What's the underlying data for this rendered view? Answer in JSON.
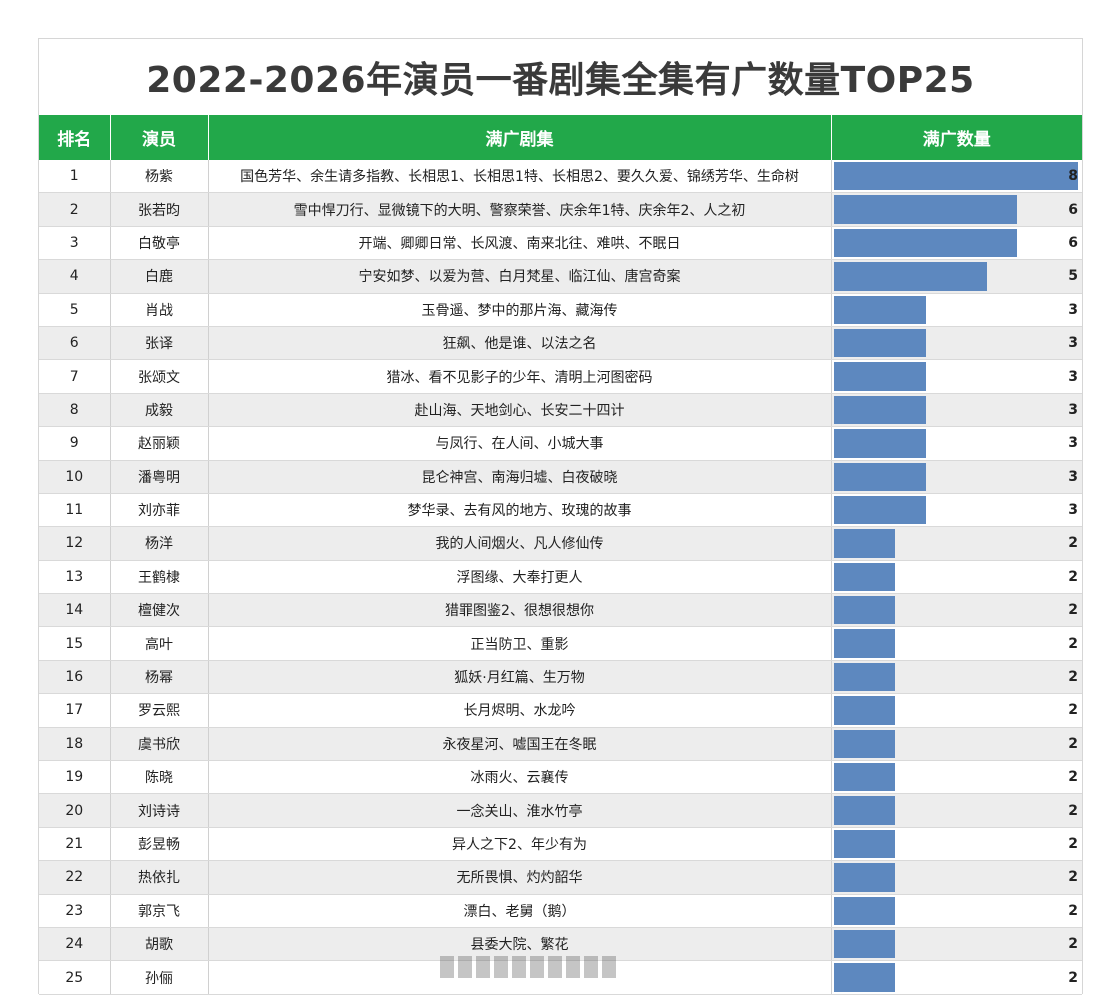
{
  "title": "2022-2026年演员一番剧集全集有广数量TOP25",
  "headers": {
    "rank": "排名",
    "actor": "演员",
    "dramas": "满广剧集",
    "count": "满广数量"
  },
  "colors": {
    "header_bg": "#22a84a",
    "bar": "#5d88bf"
  },
  "rows": [
    {
      "rank": "1",
      "actor": "杨紫",
      "dramas": "国色芳华、余生请多指教、长相思1、长相思1特、长相思2、要久久爱、锦绣芳华、生命树",
      "count": 8
    },
    {
      "rank": "2",
      "actor": "张若昀",
      "dramas": "雪中悍刀行、显微镜下的大明、警察荣誉、庆余年1特、庆余年2、人之初",
      "count": 6
    },
    {
      "rank": "3",
      "actor": "白敬亭",
      "dramas": "开端、卿卿日常、长风渡、南来北往、难哄、不眠日",
      "count": 6
    },
    {
      "rank": "4",
      "actor": "白鹿",
      "dramas": "宁安如梦、以爱为营、白月梵星、临江仙、唐宫奇案",
      "count": 5
    },
    {
      "rank": "5",
      "actor": "肖战",
      "dramas": "玉骨遥、梦中的那片海、藏海传",
      "count": 3
    },
    {
      "rank": "6",
      "actor": "张译",
      "dramas": "狂飙、他是谁、以法之名",
      "count": 3
    },
    {
      "rank": "7",
      "actor": "张颂文",
      "dramas": "猎冰、看不见影子的少年、清明上河图密码",
      "count": 3
    },
    {
      "rank": "8",
      "actor": "成毅",
      "dramas": "赴山海、天地剑心、长安二十四计",
      "count": 3
    },
    {
      "rank": "9",
      "actor": "赵丽颖",
      "dramas": "与凤行、在人间、小城大事",
      "count": 3
    },
    {
      "rank": "10",
      "actor": "潘粤明",
      "dramas": "昆仑神宫、南海归墟、白夜破晓",
      "count": 3
    },
    {
      "rank": "11",
      "actor": "刘亦菲",
      "dramas": "梦华录、去有风的地方、玫瑰的故事",
      "count": 3
    },
    {
      "rank": "12",
      "actor": "杨洋",
      "dramas": "我的人间烟火、凡人修仙传",
      "count": 2
    },
    {
      "rank": "13",
      "actor": "王鹤棣",
      "dramas": "浮图缘、大奉打更人",
      "count": 2
    },
    {
      "rank": "14",
      "actor": "檀健次",
      "dramas": "猎罪图鉴2、很想很想你",
      "count": 2
    },
    {
      "rank": "15",
      "actor": "高叶",
      "dramas": "正当防卫、重影",
      "count": 2
    },
    {
      "rank": "16",
      "actor": "杨幂",
      "dramas": "狐妖·月红篇、生万物",
      "count": 2
    },
    {
      "rank": "17",
      "actor": "罗云熙",
      "dramas": "长月烬明、水龙吟",
      "count": 2
    },
    {
      "rank": "18",
      "actor": "虞书欣",
      "dramas": "永夜星河、嘘国王在冬眠",
      "count": 2
    },
    {
      "rank": "19",
      "actor": "陈晓",
      "dramas": "冰雨火、云襄传",
      "count": 2
    },
    {
      "rank": "20",
      "actor": "刘诗诗",
      "dramas": "一念关山、淮水竹亭",
      "count": 2
    },
    {
      "rank": "21",
      "actor": "彭昱畅",
      "dramas": "异人之下2、年少有为",
      "count": 2
    },
    {
      "rank": "22",
      "actor": "热依扎",
      "dramas": "无所畏惧、灼灼韶华",
      "count": 2
    },
    {
      "rank": "23",
      "actor": "郭京飞",
      "dramas": "漂白、老舅（鹅）",
      "count": 2
    },
    {
      "rank": "24",
      "actor": "胡歌",
      "dramas": "县委大院、繁花",
      "count": 2
    },
    {
      "rank": "25",
      "actor": "孙俪",
      "dramas": "",
      "count": 2
    }
  ],
  "chart_data": {
    "type": "bar",
    "categories": [
      "杨紫",
      "张若昀",
      "白敬亭",
      "白鹿",
      "肖战",
      "张译",
      "张颂文",
      "成毅",
      "赵丽颖",
      "潘粤明",
      "刘亦菲",
      "杨洋",
      "王鹤棣",
      "檀健次",
      "高叶",
      "杨幂",
      "罗云熙",
      "虞书欣",
      "陈晓",
      "刘诗诗",
      "彭昱畅",
      "热依扎",
      "郭京飞",
      "胡歌",
      "孙俪"
    ],
    "values": [
      8,
      6,
      6,
      5,
      3,
      3,
      3,
      3,
      3,
      3,
      3,
      2,
      2,
      2,
      2,
      2,
      2,
      2,
      2,
      2,
      2,
      2,
      2,
      2,
      2
    ],
    "xlim": [
      0,
      8
    ]
  }
}
